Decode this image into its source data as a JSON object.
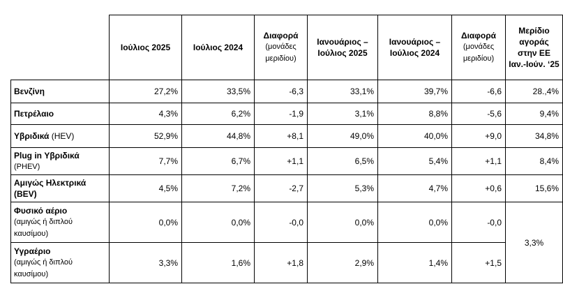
{
  "headers": [
    {
      "main": "Ιούλιος 2025",
      "sub": ""
    },
    {
      "main": "Ιούλιος 2024",
      "sub": ""
    },
    {
      "main": "Διαφορά",
      "sub": "(μονάδες μεριδίου)"
    },
    {
      "main": "Ιανουάριος – Ιούλιος 2025",
      "sub": ""
    },
    {
      "main": "Ιανουάριος – Ιούλιος 2024",
      "sub": ""
    },
    {
      "main": "Διαφορά",
      "sub": "(μονάδες μεριδίου)"
    },
    {
      "main": "Μερίδιο αγοράς στην ΕΕ Ιαν.-Ιούν. ‘25",
      "sub": ""
    }
  ],
  "rows": [
    {
      "label": "Βενζίνη",
      "label_suffix": "",
      "label_small": "",
      "values": [
        "27,2%",
        "33,5%",
        "-6,3",
        "33,1%",
        "39,7%",
        "-6,6",
        "28.,4%"
      ]
    },
    {
      "label": "Πετρέλαιο",
      "label_suffix": "",
      "label_small": "",
      "values": [
        "4,3%",
        "6,2%",
        "-1,9",
        "3,1%",
        "8,8%",
        "-5,6",
        "9,4%"
      ]
    },
    {
      "label": "Υβριδικά",
      "label_suffix": " (HEV)",
      "label_small": "",
      "values": [
        "52,9%",
        "44,8%",
        "+8,1",
        "49,0%",
        "40,0%",
        "+9,0",
        "34,8%"
      ]
    },
    {
      "label": "Plug in Υβριδικά",
      "label_suffix": "",
      "label_small": "(PHEV)",
      "values": [
        "7,7%",
        "6,7%",
        "+1,1",
        "6,5%",
        "5,4%",
        "+1,1",
        "8,4%"
      ]
    },
    {
      "label": "Αμιγώς Ηλεκτρικά",
      "label_suffix": "",
      "label_small": "(BEV)",
      "values": [
        "4,5%",
        "7,2%",
        "-2,7",
        "5,3%",
        "4,7%",
        "+0,6",
        "15,6%"
      ]
    },
    {
      "label": "Φυσικό αέριο",
      "label_suffix": "",
      "label_small": "(αμιγώς ή διπλού καυσίμου)",
      "values": [
        "0,0%",
        "0,0%",
        "-0,0",
        "0,0%",
        "0,0%",
        "-0,0"
      ]
    },
    {
      "label": "Υγραέριο",
      "label_suffix": "",
      "label_small": "(αμιγώς ή διπλού καυσίμου)",
      "values": [
        "3,3%",
        "1,6%",
        "+1,8",
        "2,9%",
        "1,4%",
        "+1,5"
      ]
    }
  ],
  "merged_eu_share": "3,3%"
}
